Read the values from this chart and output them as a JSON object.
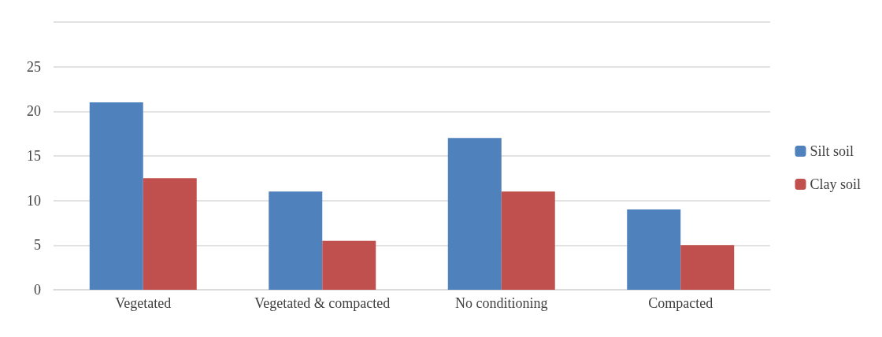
{
  "chart_data": {
    "type": "bar",
    "categories": [
      "Vegetated",
      "Vegetated & compacted",
      "No conditioning",
      "Compacted"
    ],
    "series": [
      {
        "name": "Silt soil",
        "color": "#4f81bd",
        "values": [
          21,
          11,
          17,
          9
        ]
      },
      {
        "name": "Clay soil",
        "color": "#c0504d",
        "values": [
          12.5,
          5.5,
          11,
          5
        ]
      }
    ],
    "ylim": [
      0,
      30
    ],
    "yticks": [
      0,
      5,
      10,
      15,
      20,
      25,
      {
        "value": 30,
        "label": null
      }
    ],
    "grid": "y",
    "legend": "right"
  }
}
